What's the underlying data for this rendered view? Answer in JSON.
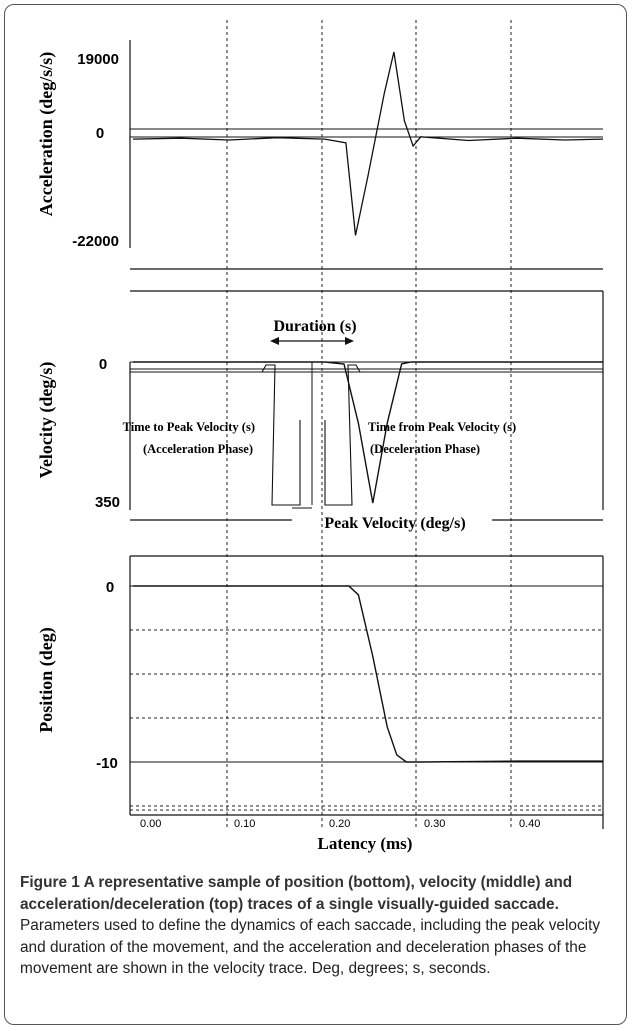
{
  "chart_data": [
    {
      "type": "line",
      "panel": "acceleration",
      "ylabel": "Acceleration (deg/s/s)",
      "ytick_labels": [
        "19000",
        "0",
        "-22000"
      ],
      "ylim": [
        -22000,
        19000
      ],
      "x": [
        0.0,
        0.05,
        0.1,
        0.15,
        0.2,
        0.222,
        0.232,
        0.245,
        0.262,
        0.272,
        0.283,
        0.292,
        0.3,
        0.35,
        0.4,
        0.45,
        0.49
      ],
      "values": [
        0,
        200,
        -200,
        300,
        0,
        -800,
        -21000,
        -8000,
        10000,
        19000,
        4000,
        -1500,
        500,
        -300,
        200,
        -200,
        0
      ]
    },
    {
      "type": "line",
      "panel": "velocity",
      "ylabel": "Velocity (deg/s)",
      "ytick_labels": [
        "0",
        "350"
      ],
      "ylim": [
        0,
        350
      ],
      "x": [
        0.0,
        0.1,
        0.2,
        0.22,
        0.235,
        0.25,
        0.265,
        0.28,
        0.29,
        0.3,
        0.4,
        0.49
      ],
      "values": [
        0,
        0,
        0,
        5,
        150,
        345,
        150,
        5,
        0,
        0,
        0,
        0
      ],
      "annotations": [
        {
          "label": "Duration (s)"
        },
        {
          "label": "Time to Peak Velocity (s)",
          "sublabel": "(Acceleration Phase)"
        },
        {
          "label": "Time from Peak Velocity (s)",
          "sublabel": "(Deceleration Phase)"
        },
        {
          "label": "Peak Velocity (deg/s)"
        }
      ]
    },
    {
      "type": "line",
      "panel": "position",
      "ylabel": "Position (deg)",
      "ytick_labels": [
        "0",
        "-10"
      ],
      "ylim": [
        -10,
        0
      ],
      "xlabel": "Latency (ms)",
      "xtick_labels": [
        "0.00",
        "0.10",
        "0.20",
        "0.30",
        "0.40"
      ],
      "x": [
        0.0,
        0.1,
        0.2,
        0.225,
        0.235,
        0.25,
        0.265,
        0.275,
        0.285,
        0.3,
        0.4,
        0.49
      ],
      "values": [
        0,
        0,
        0,
        0,
        -0.5,
        -4,
        -8,
        -9.6,
        -10,
        -10,
        -9.95,
        -9.95
      ]
    }
  ],
  "caption": {
    "lead": "Figure 1 A representative sample of position (bottom), velocity (middle) and acceleration/deceleration (top) traces of a single visually-guided saccade.",
    "body": " Parameters used to define the dynamics of each saccade, including the peak velocity and duration of the movement, and the acceleration and deceleration phases of the movement are shown in the velocity trace. Deg, degrees; s, seconds."
  }
}
